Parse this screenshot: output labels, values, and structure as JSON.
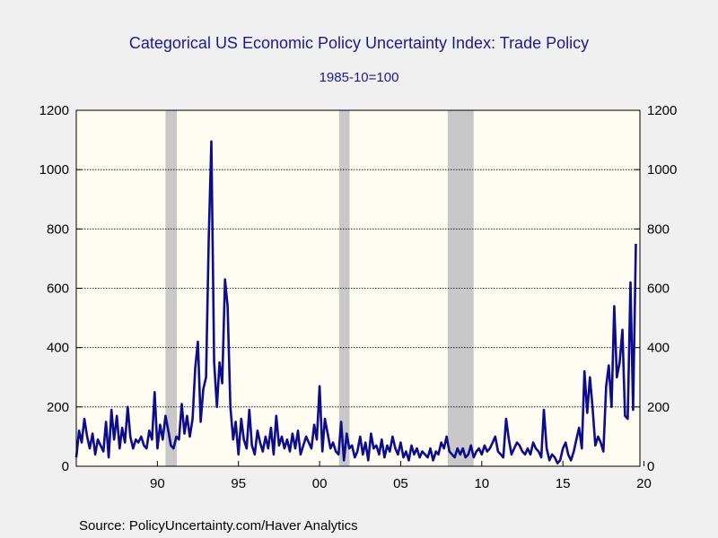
{
  "chart_data": {
    "type": "line",
    "title": "Categorical US Economic Policy Uncertainty Index: Trade Policy",
    "subtitle": "1985-10=100",
    "source": "Source:  PolicyUncertainty.com/Haver Analytics",
    "xlabel": "",
    "ylabel": "",
    "xlim": [
      1985.0,
      2019.75
    ],
    "ylim": [
      0,
      1200
    ],
    "y_ticks": [
      0,
      200,
      400,
      600,
      800,
      1000,
      1200
    ],
    "x_ticks": [
      {
        "year": 1990,
        "label": "90"
      },
      {
        "year": 1995,
        "label": "95"
      },
      {
        "year": 2000,
        "label": "00"
      },
      {
        "year": 2005,
        "label": "05"
      },
      {
        "year": 2010,
        "label": "10"
      },
      {
        "year": 2015,
        "label": "15"
      },
      {
        "year": 2020,
        "label": "20"
      }
    ],
    "recessions": [
      [
        1990.5,
        1991.2
      ],
      [
        2001.2,
        2001.85
      ],
      [
        2007.9,
        2009.5
      ]
    ],
    "grid": true,
    "colors": {
      "line": "#0d0d8c",
      "plot_bg": "#fffcf2",
      "recession": "#c8c8c8",
      "title": "#1a1a8c"
    },
    "series": [
      {
        "name": "Trade Policy",
        "x": [
          1985.0,
          1985.17,
          1985.33,
          1985.5,
          1985.67,
          1985.83,
          1986.0,
          1986.17,
          1986.33,
          1986.5,
          1986.67,
          1986.83,
          1987.0,
          1987.17,
          1987.33,
          1987.5,
          1987.67,
          1987.83,
          1988.0,
          1988.17,
          1988.33,
          1988.5,
          1988.67,
          1988.83,
          1989.0,
          1989.17,
          1989.33,
          1989.5,
          1989.67,
          1989.83,
          1990.0,
          1990.17,
          1990.33,
          1990.5,
          1990.67,
          1990.83,
          1991.0,
          1991.17,
          1991.33,
          1991.5,
          1991.67,
          1991.83,
          1992.0,
          1992.17,
          1992.33,
          1992.5,
          1992.67,
          1992.83,
          1993.0,
          1993.17,
          1993.33,
          1993.5,
          1993.67,
          1993.83,
          1994.0,
          1994.17,
          1994.33,
          1994.5,
          1994.67,
          1994.83,
          1995.0,
          1995.17,
          1995.33,
          1995.5,
          1995.67,
          1995.83,
          1996.0,
          1996.17,
          1996.33,
          1996.5,
          1996.67,
          1996.83,
          1997.0,
          1997.17,
          1997.33,
          1997.5,
          1997.67,
          1997.83,
          1998.0,
          1998.17,
          1998.33,
          1998.5,
          1998.67,
          1998.83,
          1999.0,
          1999.17,
          1999.33,
          1999.5,
          1999.67,
          1999.83,
          2000.0,
          2000.17,
          2000.33,
          2000.5,
          2000.67,
          2000.83,
          2001.0,
          2001.17,
          2001.33,
          2001.5,
          2001.67,
          2001.83,
          2002.0,
          2002.17,
          2002.33,
          2002.5,
          2002.67,
          2002.83,
          2003.0,
          2003.17,
          2003.33,
          2003.5,
          2003.67,
          2003.83,
          2004.0,
          2004.17,
          2004.33,
          2004.5,
          2004.67,
          2004.83,
          2005.0,
          2005.17,
          2005.33,
          2005.5,
          2005.67,
          2005.83,
          2006.0,
          2006.17,
          2006.33,
          2006.5,
          2006.67,
          2006.83,
          2007.0,
          2007.17,
          2007.33,
          2007.5,
          2007.67,
          2007.83,
          2008.0,
          2008.17,
          2008.33,
          2008.5,
          2008.67,
          2008.83,
          2009.0,
          2009.17,
          2009.33,
          2009.5,
          2009.67,
          2009.83,
          2010.0,
          2010.17,
          2010.33,
          2010.5,
          2010.67,
          2010.83,
          2011.0,
          2011.17,
          2011.33,
          2011.5,
          2011.67,
          2011.83,
          2012.0,
          2012.17,
          2012.33,
          2012.5,
          2012.67,
          2012.83,
          2013.0,
          2013.17,
          2013.33,
          2013.5,
          2013.67,
          2013.83,
          2014.0,
          2014.17,
          2014.33,
          2014.5,
          2014.67,
          2014.83,
          2015.0,
          2015.17,
          2015.33,
          2015.5,
          2015.67,
          2015.83,
          2016.0,
          2016.17,
          2016.33,
          2016.5,
          2016.67,
          2016.83,
          2017.0,
          2017.17,
          2017.33,
          2017.5,
          2017.67,
          2017.83,
          2018.0,
          2018.17,
          2018.33,
          2018.5,
          2018.67,
          2018.83,
          2019.0,
          2019.17,
          2019.33,
          2019.5
        ],
        "values": [
          30,
          120,
          80,
          160,
          100,
          60,
          110,
          40,
          90,
          70,
          50,
          150,
          30,
          190,
          90,
          170,
          60,
          130,
          80,
          200,
          100,
          60,
          90,
          80,
          100,
          70,
          60,
          120,
          90,
          250,
          60,
          140,
          90,
          170,
          120,
          70,
          60,
          100,
          90,
          210,
          110,
          170,
          100,
          160,
          330,
          420,
          150,
          260,
          300,
          770,
          1095,
          350,
          200,
          350,
          280,
          630,
          540,
          200,
          90,
          150,
          40,
          160,
          90,
          60,
          190,
          70,
          40,
          120,
          80,
          50,
          100,
          60,
          130,
          40,
          170,
          70,
          100,
          60,
          90,
          50,
          110,
          60,
          120,
          40,
          70,
          100,
          80,
          60,
          140,
          90,
          270,
          50,
          160,
          110,
          60,
          80,
          50,
          40,
          150,
          20,
          110,
          60,
          70,
          30,
          50,
          100,
          40,
          80,
          20,
          110,
          60,
          70,
          40,
          90,
          30,
          70,
          50,
          100,
          60,
          40,
          80,
          30,
          50,
          20,
          70,
          40,
          60,
          30,
          50,
          40,
          30,
          60,
          20,
          50,
          40,
          80,
          60,
          100,
          50,
          40,
          30,
          60,
          40,
          60,
          30,
          40,
          70,
          30,
          50,
          60,
          40,
          70,
          50,
          60,
          80,
          100,
          50,
          40,
          30,
          160,
          90,
          40,
          60,
          80,
          70,
          50,
          40,
          60,
          40,
          80,
          60,
          50,
          30,
          190,
          60,
          20,
          40,
          30,
          10,
          20,
          60,
          80,
          40,
          20,
          50,
          90,
          130,
          60,
          320,
          180,
          300,
          200,
          70,
          100,
          80,
          50,
          270,
          340,
          200,
          540,
          300,
          350,
          460,
          170,
          160,
          620,
          190,
          750
        ]
      }
    ]
  }
}
